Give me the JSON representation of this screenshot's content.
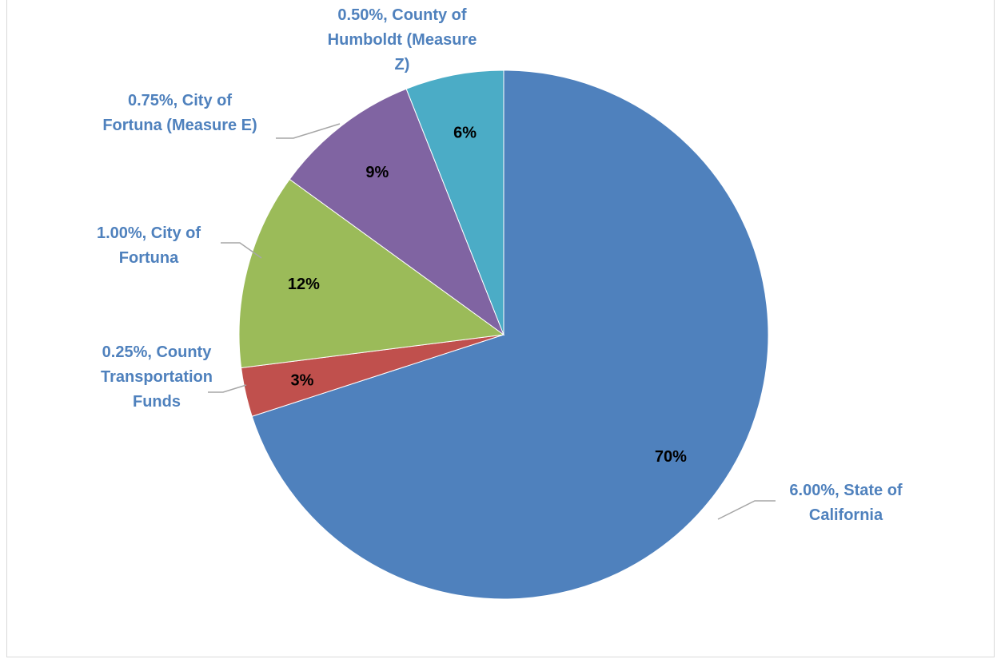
{
  "chart_data": {
    "type": "pie",
    "title": "",
    "start_angle_deg": 0,
    "direction": "clockwise",
    "slices": [
      {
        "label_lines": [
          "6.00%, State of",
          "California"
        ],
        "rate": "6.00%",
        "name": "State of California",
        "value": 70,
        "percent_label": "70%",
        "color": "#4F81BD"
      },
      {
        "label_lines": [
          "0.25%, County",
          "Transportation",
          "Funds"
        ],
        "rate": "0.25%",
        "name": "County Transportation Funds",
        "value": 3,
        "percent_label": "3%",
        "color": "#C0504D"
      },
      {
        "label_lines": [
          "1.00%, City of",
          "Fortuna"
        ],
        "rate": "1.00%",
        "name": "City of Fortuna",
        "value": 12,
        "percent_label": "12%",
        "color": "#9BBB59"
      },
      {
        "label_lines": [
          "0.75%, City of",
          "Fortuna (Measure E)"
        ],
        "rate": "0.75%",
        "name": "City of Fortuna (Measure E)",
        "value": 9,
        "percent_label": "9%",
        "color": "#8064A2"
      },
      {
        "label_lines": [
          "0.50%, County of",
          "Humboldt (Measure",
          "Z)"
        ],
        "rate": "0.50%",
        "name": "County of Humboldt (Measure Z)",
        "value": 6,
        "percent_label": "6%",
        "color": "#4BACC6"
      }
    ],
    "label_color": "#4F81BD",
    "leader_line_color": "#A6A6A6",
    "legend": "none"
  }
}
